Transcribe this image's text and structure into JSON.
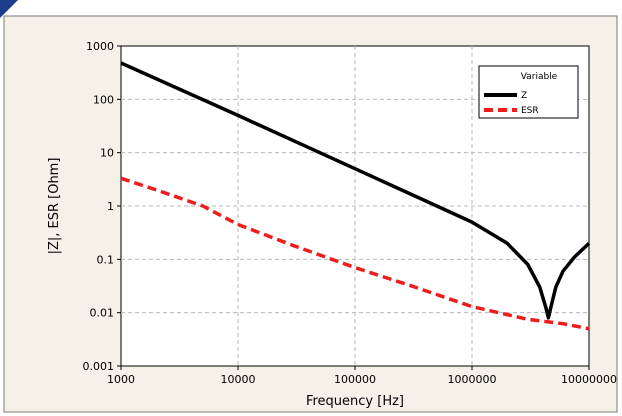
{
  "chart_data": {
    "type": "line",
    "title": "",
    "xlabel": "Frequency [Hz]",
    "ylabel": "|Z|, ESR [Ohm]",
    "x_scale": "log",
    "y_scale": "log",
    "xlim": [
      1000,
      10000000
    ],
    "ylim": [
      0.001,
      1000
    ],
    "x_ticks": [
      1000,
      10000,
      100000,
      1000000,
      10000000
    ],
    "x_tick_labels": [
      "1000",
      "10000",
      "100000",
      "1000000",
      "10000000"
    ],
    "y_ticks": [
      0.001,
      0.01,
      0.1,
      1,
      10,
      100,
      1000
    ],
    "y_tick_labels": [
      "0.001",
      "0.01",
      "0.1",
      "1",
      "10",
      "100",
      "1000"
    ],
    "grid": true,
    "legend": {
      "title": "Variable",
      "placement": "top-right"
    },
    "series": [
      {
        "name": "Z",
        "color": "#000000",
        "style": "solid",
        "points": [
          [
            1000,
            480
          ],
          [
            10000,
            50
          ],
          [
            100000,
            5
          ],
          [
            500000,
            1
          ],
          [
            1000000,
            0.5
          ],
          [
            2000000,
            0.2
          ],
          [
            3000000,
            0.08
          ],
          [
            3800000,
            0.03
          ],
          [
            4300000,
            0.012
          ],
          [
            4500000,
            0.008
          ],
          [
            4700000,
            0.012
          ],
          [
            5200000,
            0.03
          ],
          [
            6000000,
            0.06
          ],
          [
            7500000,
            0.11
          ],
          [
            10000000,
            0.2
          ]
        ]
      },
      {
        "name": "ESR",
        "color": "#ee1c1c",
        "style": "dashed",
        "points": [
          [
            1000,
            3.3
          ],
          [
            2000,
            2.0
          ],
          [
            5000,
            1.0
          ],
          [
            10000,
            0.45
          ],
          [
            30000,
            0.18
          ],
          [
            100000,
            0.07
          ],
          [
            300000,
            0.032
          ],
          [
            1000000,
            0.013
          ],
          [
            3000000,
            0.0075
          ],
          [
            6000000,
            0.0062
          ],
          [
            10000000,
            0.005
          ]
        ]
      }
    ]
  }
}
